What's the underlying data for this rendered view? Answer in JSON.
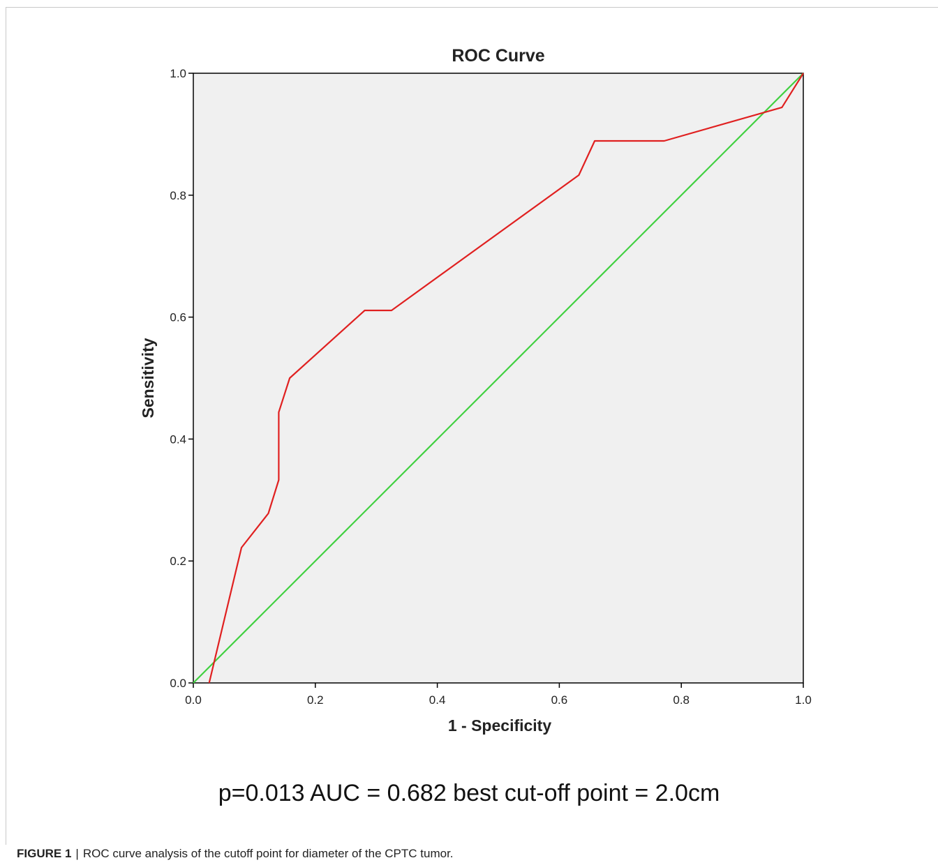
{
  "chart_data": {
    "type": "line",
    "title": "ROC Curve",
    "xlabel": "1 - Specificity",
    "ylabel": "Sensitivity",
    "xlim": [
      0,
      1
    ],
    "ylim": [
      0,
      1
    ],
    "x_ticks": [
      "0.0",
      "0.2",
      "0.4",
      "0.6",
      "0.8",
      "1.0"
    ],
    "y_ticks": [
      "0.0",
      "0.2",
      "0.4",
      "0.6",
      "0.8",
      "1.0"
    ],
    "grid": false,
    "series": [
      {
        "color": "#e02020",
        "x": [
          0.026,
          0.079,
          0.123,
          0.14,
          0.14,
          0.158,
          0.281,
          0.325,
          0.632,
          0.658,
          0.772,
          0.965,
          1.0
        ],
        "y": [
          0.0,
          0.222,
          0.278,
          0.333,
          0.444,
          0.5,
          0.611,
          0.611,
          0.833,
          0.889,
          0.889,
          0.944,
          1.0
        ]
      },
      {
        "color": "#40d040",
        "x": [
          0,
          1
        ],
        "y": [
          0,
          1
        ]
      }
    ],
    "plot_background": "#f0f0f0"
  },
  "annotation": "p=0.013 AUC = 0.682 best cut-off point = 2.0cm",
  "caption": {
    "label": "FIGURE 1",
    "separator": "|",
    "text": "ROC curve analysis of the cutoff point for diameter of the CPTC tumor."
  }
}
